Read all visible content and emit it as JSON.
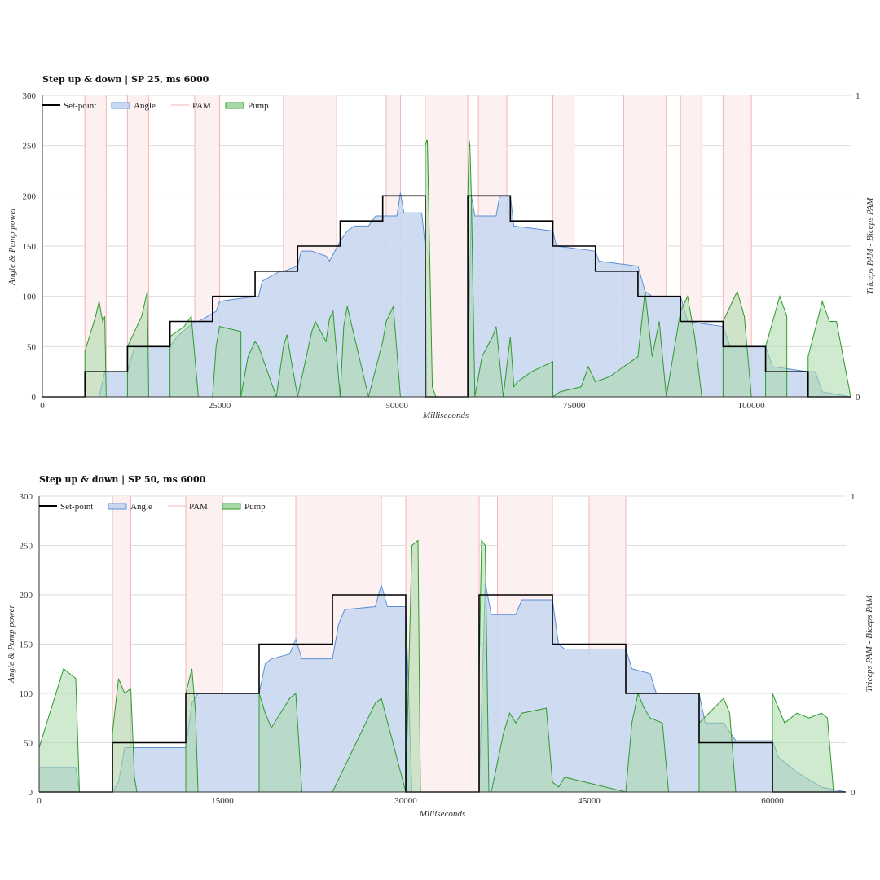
{
  "colors": {
    "setpoint": "#000000",
    "angle_fill": "#c9d8f0",
    "angle_line": "#5b8fd6",
    "pam": "#f4b6b6",
    "pam_fill": "#fdf0f0",
    "pump_fill": "#a7d9a7",
    "pump_line": "#2e9a2e",
    "grid": "#dddddd"
  },
  "chart_data": [
    {
      "type": "area",
      "title": "Step up & down | SP 25, ms 6000",
      "xlabel": "Milliseconds",
      "ylabel": "Angle & Pump power",
      "y2label": "Triceps PAM - Biceps PAM",
      "xlim": [
        0,
        114000
      ],
      "ylim": [
        0,
        300
      ],
      "y2lim": [
        0,
        1
      ],
      "xticks": [
        0,
        25000,
        50000,
        75000,
        100000
      ],
      "yticks": [
        0,
        50,
        100,
        150,
        200,
        250,
        300
      ],
      "y2ticks": [
        0,
        1
      ],
      "legend": [
        "Set-point",
        "Angle",
        "PAM",
        "Pump"
      ],
      "legend_position": "top-left",
      "series": [
        {
          "name": "Set-point",
          "kind": "step",
          "x": [
            0,
            6000,
            6000,
            12000,
            12000,
            18000,
            18000,
            24000,
            24000,
            30000,
            30000,
            36000,
            36000,
            42000,
            42000,
            48000,
            48000,
            54000,
            54000,
            60000,
            60000,
            66000,
            66000,
            72000,
            72000,
            78000,
            78000,
            84000,
            84000,
            90000,
            90000,
            96000,
            96000,
            102000,
            102000,
            108000,
            108000,
            114000
          ],
          "y": [
            0,
            0,
            25,
            25,
            50,
            50,
            75,
            75,
            100,
            100,
            125,
            125,
            150,
            150,
            175,
            175,
            200,
            200,
            0,
            0,
            200,
            200,
            175,
            175,
            150,
            150,
            125,
            125,
            100,
            100,
            75,
            75,
            50,
            50,
            25,
            25,
            0,
            0
          ]
        },
        {
          "name": "Angle",
          "x": [
            0,
            8000,
            8800,
            9000,
            12000,
            12200,
            13000,
            18000,
            18500,
            19000,
            21500,
            22000,
            24500,
            25000,
            28000,
            30500,
            31000,
            33500,
            34000,
            36000,
            36500,
            38000,
            40000,
            40500,
            42000,
            43000,
            44000,
            46000,
            47000,
            50000,
            50500,
            51000,
            53500,
            54000,
            54200,
            60000,
            60500,
            61000,
            64000,
            64500,
            66000,
            66500,
            72000,
            72500,
            78000,
            78500,
            84000,
            85000,
            86000,
            90000,
            91000,
            96000,
            97000,
            102000,
            103000,
            108000,
            109000,
            110000,
            114000
          ],
          "y": [
            0,
            0,
            25,
            25,
            25,
            30,
            50,
            50,
            55,
            60,
            75,
            75,
            85,
            95,
            98,
            100,
            115,
            125,
            125,
            130,
            145,
            145,
            140,
            135,
            155,
            165,
            170,
            170,
            180,
            180,
            203,
            183,
            183,
            150,
            0,
            0,
            200,
            180,
            180,
            200,
            200,
            170,
            165,
            150,
            145,
            135,
            130,
            105,
            100,
            100,
            75,
            70,
            50,
            50,
            30,
            25,
            25,
            5,
            0
          ]
        },
        {
          "name": "Pump",
          "x": [
            0,
            6000,
            6000,
            7500,
            8000,
            8500,
            8800,
            9000,
            12000,
            12000,
            14000,
            14800,
            15000,
            18000,
            18000,
            19000,
            20000,
            21000,
            22000,
            24000,
            24500,
            25000,
            28000,
            28000,
            29000,
            30000,
            30500,
            33000,
            34000,
            34500,
            35000,
            36000,
            38000,
            38500,
            40000,
            40500,
            41000,
            42000,
            42500,
            43000,
            44000,
            46000,
            48000,
            48500,
            49500,
            50000,
            50500,
            54000,
            54000,
            54200,
            54300,
            55000,
            55500,
            55800,
            60000,
            60000,
            60200,
            60300,
            60500,
            61000,
            62000,
            63500,
            64000,
            65000,
            66000,
            66500,
            67000,
            69000,
            72000,
            72000,
            73000,
            76000,
            77000,
            78000,
            80000,
            84000,
            85000,
            86000,
            87000,
            88000,
            90000,
            91000,
            92000,
            93000,
            96000,
            96000,
            97000,
            98000,
            99000,
            100000,
            102000,
            102000,
            104000,
            105000,
            105000,
            108000,
            108000,
            110000,
            111000,
            112000,
            114000
          ],
          "y": [
            0,
            0,
            45,
            80,
            95,
            75,
            80,
            0,
            0,
            50,
            80,
            105,
            0,
            0,
            60,
            65,
            70,
            80,
            0,
            0,
            50,
            70,
            65,
            0,
            40,
            55,
            50,
            0,
            50,
            62,
            40,
            0,
            65,
            75,
            55,
            78,
            85,
            0,
            70,
            90,
            60,
            0,
            55,
            75,
            90,
            45,
            0,
            0,
            250,
            255,
            255,
            10,
            0,
            0,
            0,
            200,
            255,
            250,
            200,
            0,
            40,
            60,
            70,
            0,
            60,
            10,
            15,
            25,
            35,
            0,
            5,
            10,
            30,
            15,
            20,
            40,
            105,
            40,
            75,
            0,
            85,
            100,
            60,
            0,
            0,
            75,
            90,
            105,
            80,
            0,
            0,
            50,
            100,
            80,
            0,
            0,
            40,
            95,
            75,
            75,
            0
          ]
        }
      ],
      "pam_lines_x": [
        6000,
        9000,
        12000,
        15000,
        21500,
        25000,
        34000,
        41500,
        48500,
        50500,
        54000,
        60000,
        61500,
        65500,
        72000,
        75000,
        82000,
        88000,
        90000,
        93000,
        96000,
        100000
      ]
    },
    {
      "type": "area",
      "title": "Step up & down | SP 50, ms 6000",
      "xlabel": "Milliseconds",
      "ylabel": "Angle & Pump power",
      "y2label": "Triceps PAM - Biceps PAM",
      "xlim": [
        0,
        66000
      ],
      "ylim": [
        0,
        300
      ],
      "y2lim": [
        0,
        1
      ],
      "xticks": [
        0,
        15000,
        30000,
        45000,
        60000
      ],
      "yticks": [
        0,
        50,
        100,
        150,
        200,
        250,
        300
      ],
      "y2ticks": [
        0,
        1
      ],
      "legend": [
        "Set-point",
        "Angle",
        "PAM",
        "Pump"
      ],
      "legend_position": "top-left",
      "series": [
        {
          "name": "Set-point",
          "kind": "step",
          "x": [
            0,
            6000,
            6000,
            12000,
            12000,
            18000,
            18000,
            24000,
            24000,
            30000,
            30000,
            36000,
            36000,
            42000,
            42000,
            48000,
            48000,
            54000,
            54000,
            60000,
            60000,
            66000
          ],
          "y": [
            0,
            0,
            50,
            50,
            100,
            100,
            150,
            150,
            200,
            200,
            0,
            0,
            200,
            200,
            150,
            150,
            100,
            100,
            50,
            50,
            0,
            0
          ]
        },
        {
          "name": "Angle",
          "x": [
            0,
            3000,
            3300,
            6000,
            6500,
            7000,
            12000,
            12500,
            13000,
            18000,
            18500,
            19000,
            20500,
            21000,
            21500,
            24000,
            24500,
            25000,
            27500,
            28000,
            28500,
            30000,
            30500,
            36000,
            36500,
            37000,
            39000,
            39500,
            42000,
            42500,
            43000,
            48000,
            48500,
            50000,
            50500,
            54000,
            54500,
            56000,
            57000,
            60000,
            60500,
            62000,
            64000,
            66000
          ],
          "y": [
            25,
            25,
            0,
            0,
            10,
            45,
            45,
            90,
            100,
            100,
            130,
            135,
            140,
            155,
            135,
            135,
            170,
            185,
            188,
            210,
            188,
            188,
            0,
            0,
            212,
            180,
            180,
            195,
            195,
            150,
            145,
            145,
            125,
            120,
            100,
            100,
            70,
            70,
            52,
            52,
            35,
            20,
            5,
            0
          ]
        },
        {
          "name": "Pump",
          "x": [
            0,
            2000,
            3000,
            3300,
            6000,
            6000,
            6500,
            7000,
            7500,
            7800,
            8000,
            12000,
            12000,
            12500,
            12800,
            13000,
            18000,
            18000,
            18500,
            19000,
            20000,
            20500,
            21000,
            21500,
            24000,
            27500,
            28000,
            30000,
            30000,
            30500,
            31000,
            31200,
            36000,
            36000,
            36200,
            36500,
            36800,
            37000,
            38000,
            38500,
            39000,
            39500,
            41500,
            42000,
            42500,
            43000,
            48000,
            48000,
            48500,
            49000,
            49500,
            50000,
            51000,
            51500,
            54000,
            54000,
            56000,
            56500,
            57000,
            60000,
            60000,
            60500,
            61000,
            62000,
            63000,
            64000,
            64500,
            65000,
            66000
          ],
          "y": [
            45,
            125,
            115,
            0,
            0,
            60,
            115,
            100,
            105,
            15,
            0,
            0,
            100,
            125,
            80,
            0,
            0,
            100,
            80,
            65,
            85,
            95,
            100,
            0,
            0,
            90,
            95,
            0,
            0,
            250,
            255,
            0,
            0,
            120,
            255,
            250,
            0,
            0,
            60,
            80,
            70,
            80,
            85,
            10,
            5,
            15,
            0,
            0,
            70,
            100,
            85,
            75,
            70,
            0,
            0,
            70,
            95,
            80,
            0,
            0,
            100,
            85,
            70,
            80,
            75,
            80,
            75,
            0,
            0
          ]
        }
      ],
      "pam_lines_x": [
        6000,
        7500,
        12000,
        15000,
        21000,
        28000,
        30000,
        36000,
        37500,
        42000,
        45000,
        48000
      ]
    }
  ],
  "legend_labels": {
    "setpoint": "Set-point",
    "angle": "Angle",
    "pam": "PAM",
    "pump": "Pump"
  }
}
